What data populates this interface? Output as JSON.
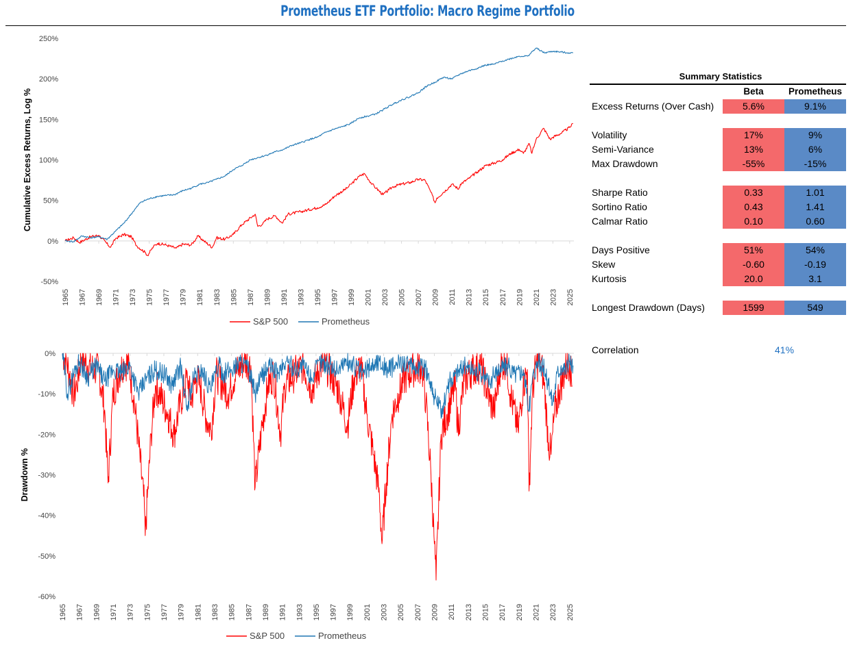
{
  "title": "Prometheus ETF Portfolio: Macro Regime Portfolio",
  "colors": {
    "sp500": "#ff0000",
    "prometheus": "#1f77b4",
    "beta_cell": "#f4696b",
    "prometheus_cell": "#5a8ac6",
    "title": "#1f70c1"
  },
  "chart_data": [
    {
      "type": "line",
      "ylabel": "Cumulative Excess Returns, Log %",
      "ylim": [
        -50,
        250
      ],
      "yticks": [
        "250%",
        "200%",
        "150%",
        "100%",
        "50%",
        "0%",
        "-50%"
      ],
      "xticks": [
        "1965",
        "1967",
        "1969",
        "1971",
        "1973",
        "1975",
        "1977",
        "1979",
        "1981",
        "1983",
        "1985",
        "1987",
        "1989",
        "1991",
        "1993",
        "1995",
        "1997",
        "1999",
        "2001",
        "2003",
        "2005",
        "2007",
        "2009",
        "2011",
        "2013",
        "2015",
        "2017",
        "2019",
        "2021",
        "2023",
        "2025"
      ],
      "xlim": [
        1965,
        2025.5
      ],
      "grid": false,
      "legend": "bottom",
      "series": [
        {
          "name": "S&P 500",
          "x": [
            1965.0,
            1966.0,
            1966.7,
            1968.0,
            1969.0,
            1970.4,
            1971.0,
            1972.0,
            1972.9,
            1973.5,
            1974.5,
            1974.8,
            1975.5,
            1976.0,
            1977.0,
            1978.2,
            1979.0,
            1980.0,
            1980.8,
            1981.5,
            1982.5,
            1983.0,
            1984.0,
            1985.0,
            1986.0,
            1987.6,
            1987.9,
            1988.5,
            1989.0,
            1990.0,
            1990.8,
            1991.5,
            1993.0,
            1995.0,
            1996.0,
            1997.0,
            1998.5,
            1999.0,
            2000.0,
            2000.6,
            2001.5,
            2002.0,
            2002.8,
            2003.5,
            2004.0,
            2005.0,
            2006.0,
            2007.0,
            2007.8,
            2008.5,
            2009.0,
            2009.2,
            2010.0,
            2011.0,
            2011.8,
            2012.0,
            2013.0,
            2014.0,
            2015.0,
            2016.0,
            2017.0,
            2018.0,
            2019.0,
            2019.5,
            2020.2,
            2020.5,
            2021.0,
            2021.9,
            2022.7,
            2023.0,
            2024.0,
            2025.0,
            2025.4
          ],
          "values": [
            0,
            4,
            -2,
            5,
            7,
            -8,
            3,
            8,
            5,
            -6,
            -14,
            -18,
            -7,
            -3,
            -5,
            -9,
            -4,
            -5,
            6,
            0,
            -8,
            4,
            2,
            8,
            20,
            33,
            18,
            21,
            27,
            31,
            22,
            33,
            36,
            41,
            45,
            55,
            65,
            70,
            80,
            83,
            70,
            65,
            57,
            63,
            67,
            70,
            72,
            76,
            75,
            60,
            47,
            53,
            60,
            70,
            64,
            70,
            77,
            85,
            93,
            96,
            100,
            108,
            113,
            108,
            120,
            108,
            125,
            139,
            125,
            128,
            133,
            140,
            145
          ]
        },
        {
          "name": "Prometheus",
          "x": [
            1965.0,
            1966.0,
            1967.0,
            1968.0,
            1969.0,
            1970.0,
            1971.0,
            1972.0,
            1973.0,
            1974.0,
            1975.0,
            1976.0,
            1977.0,
            1978.0,
            1979.0,
            1980.0,
            1981.0,
            1982.0,
            1983.0,
            1984.0,
            1985.0,
            1986.0,
            1987.0,
            1988.0,
            1989.0,
            1990.0,
            1991.0,
            1992.0,
            1993.0,
            1994.0,
            1995.0,
            1996.0,
            1997.0,
            1998.0,
            1999.0,
            2000.0,
            2001.0,
            2002.0,
            2003.0,
            2004.0,
            2005.0,
            2006.0,
            2007.0,
            2008.0,
            2009.0,
            2010.0,
            2011.0,
            2012.0,
            2013.0,
            2014.0,
            2015.0,
            2016.0,
            2017.0,
            2018.0,
            2019.0,
            2020.0,
            2021.0,
            2022.0,
            2023.0,
            2024.0,
            2025.0,
            2025.4
          ],
          "values": [
            0,
            -1,
            6,
            4,
            5,
            2,
            12,
            22,
            35,
            48,
            52,
            55,
            56,
            57,
            62,
            65,
            70,
            72,
            76,
            80,
            88,
            93,
            100,
            103,
            106,
            110,
            113,
            118,
            121,
            125,
            128,
            134,
            138,
            141,
            145,
            152,
            154,
            157,
            163,
            169,
            174,
            178,
            183,
            191,
            196,
            202,
            200,
            206,
            210,
            213,
            217,
            218,
            222,
            225,
            228,
            228,
            238,
            232,
            234,
            233,
            232,
            232
          ]
        }
      ]
    },
    {
      "type": "area",
      "ylabel": "Drawdown %",
      "ylim": [
        -60,
        0
      ],
      "yticks": [
        "0%",
        "-10%",
        "-20%",
        "-30%",
        "-40%",
        "-50%",
        "-60%"
      ],
      "xticks": [
        "1965",
        "1967",
        "1969",
        "1971",
        "1973",
        "1975",
        "1977",
        "1979",
        "1981",
        "1983",
        "1985",
        "1987",
        "1989",
        "1991",
        "1993",
        "1995",
        "1997",
        "1999",
        "2001",
        "2003",
        "2005",
        "2007",
        "2009",
        "2011",
        "2013",
        "2015",
        "2017",
        "2019",
        "2021",
        "2023",
        "2025"
      ],
      "xlim": [
        1965,
        2025.5
      ],
      "grid": false,
      "legend": "bottom",
      "series": [
        {
          "name": "S&P 500",
          "x": [
            1965.0,
            1965.5,
            1966.3,
            1966.7,
            1967.2,
            1968.0,
            1968.8,
            1969.3,
            1970.0,
            1970.4,
            1971.0,
            1971.7,
            1972.3,
            1972.9,
            1973.5,
            1974.0,
            1974.7,
            1974.8,
            1975.5,
            1976.0,
            1976.5,
            1977.5,
            1978.2,
            1979.0,
            1979.8,
            1980.2,
            1980.8,
            1981.3,
            1982.0,
            1982.6,
            1983.2,
            1984.0,
            1984.6,
            1985.5,
            1986.5,
            1987.3,
            1987.8,
            1988.5,
            1989.3,
            1990.0,
            1990.8,
            1991.3,
            1992.5,
            1993.5,
            1994.5,
            1995.5,
            1996.5,
            1997.8,
            1998.7,
            1999.5,
            2000.3,
            2001.0,
            2001.8,
            2002.5,
            2002.8,
            2003.3,
            2004.0,
            2004.8,
            2005.5,
            2006.5,
            2007.5,
            2008.0,
            2008.6,
            2009.0,
            2009.2,
            2009.8,
            2010.5,
            2011.5,
            2011.8,
            2012.5,
            2013.5,
            2014.5,
            2015.6,
            2016.1,
            2016.8,
            2017.5,
            2018.0,
            2018.9,
            2019.5,
            2020.0,
            2020.2,
            2020.6,
            2021.0,
            2021.6,
            2022.0,
            2022.5,
            2022.8,
            2023.2,
            2023.8,
            2024.5,
            2025.0,
            2025.3
          ],
          "values": [
            0,
            -2,
            -10,
            -8,
            -1,
            -3,
            -4,
            -4,
            -14,
            -32,
            -10,
            -5,
            -2,
            -3,
            -12,
            -22,
            -38,
            -45,
            -20,
            -8,
            -10,
            -15,
            -20,
            -12,
            -6,
            -12,
            -6,
            -8,
            -16,
            -19,
            -5,
            -8,
            -10,
            -5,
            -2,
            -3,
            -33,
            -20,
            -8,
            -5,
            -20,
            -8,
            -5,
            -3,
            -9,
            -3,
            -4,
            -10,
            -18,
            -6,
            -3,
            -15,
            -25,
            -35,
            -47,
            -32,
            -15,
            -10,
            -6,
            -4,
            -3,
            -12,
            -30,
            -47,
            -56,
            -20,
            -15,
            -8,
            -19,
            -7,
            -4,
            -3,
            -12,
            -14,
            -3,
            -2,
            -10,
            -19,
            -8,
            -4,
            -34,
            -10,
            -3,
            -2,
            -8,
            -22,
            -25,
            -15,
            -9,
            -4,
            -2,
            -8
          ]
        },
        {
          "name": "Prometheus",
          "x": [
            1965.0,
            1965.6,
            1966.5,
            1967.0,
            1968.0,
            1969.0,
            1970.0,
            1971.0,
            1972.0,
            1973.0,
            1974.0,
            1975.0,
            1976.0,
            1977.0,
            1978.0,
            1979.0,
            1979.7,
            1980.5,
            1981.5,
            1982.5,
            1983.5,
            1984.0,
            1985.0,
            1986.0,
            1987.0,
            1987.8,
            1988.5,
            1989.5,
            1990.5,
            1991.5,
            1992.5,
            1993.5,
            1994.5,
            1995.5,
            1996.5,
            1997.5,
            1998.5,
            1999.5,
            2000.5,
            2001.5,
            2002.5,
            2003.5,
            2004.5,
            2005.5,
            2006.5,
            2007.5,
            2008.3,
            2008.9,
            2009.5,
            2010.0,
            2010.5,
            2011.5,
            2012.5,
            2013.5,
            2014.5,
            2015.5,
            2016.5,
            2017.5,
            2018.5,
            2019.5,
            2020.2,
            2020.6,
            2021.2,
            2022.0,
            2022.5,
            2023.0,
            2023.5,
            2024.0,
            2024.5,
            2025.0,
            2025.4
          ],
          "values": [
            0,
            -10,
            -4,
            -2,
            -6,
            -3,
            -7,
            -4,
            -5,
            -3,
            -10,
            -6,
            -4,
            -5,
            -8,
            -3,
            -14,
            -6,
            -4,
            -9,
            -3,
            -5,
            -4,
            -2,
            -4,
            -10,
            -6,
            -3,
            -5,
            -2,
            -4,
            -3,
            -6,
            -2,
            -3,
            -4,
            -2,
            -3,
            -5,
            -3,
            -2,
            -4,
            -3,
            -2,
            -4,
            -3,
            -5,
            -10,
            -13,
            -15,
            -8,
            -5,
            -3,
            -4,
            -5,
            -7,
            -4,
            -3,
            -5,
            -4,
            -14,
            -6,
            -2,
            -4,
            -8,
            -12,
            -5,
            -3,
            -4,
            -2,
            -3
          ]
        }
      ]
    }
  ],
  "stats": {
    "title": "Summary Statistics",
    "col_beta": "Beta",
    "col_prometheus": "Prometheus",
    "rows": [
      {
        "label": "Excess Returns (Over Cash)",
        "beta": "5.6%",
        "prometheus": "9.1%"
      },
      {
        "label": "Volatility",
        "beta": "17%",
        "prometheus": "9%"
      },
      {
        "label": "Semi-Variance",
        "beta": "13%",
        "prometheus": "6%"
      },
      {
        "label": "Max Drawdown",
        "beta": "-55%",
        "prometheus": "-15%"
      },
      {
        "label": "Sharpe Ratio",
        "beta": "0.33",
        "prometheus": "1.01"
      },
      {
        "label": "Sortino Ratio",
        "beta": "0.43",
        "prometheus": "1.41"
      },
      {
        "label": "Calmar Ratio",
        "beta": "0.10",
        "prometheus": "0.60"
      },
      {
        "label": "Days Positive",
        "beta": "51%",
        "prometheus": "54%"
      },
      {
        "label": "Skew",
        "beta": "-0.60",
        "prometheus": "-0.19"
      },
      {
        "label": "Kurtosis",
        "beta": "20.0",
        "prometheus": "3.1"
      },
      {
        "label": "Longest Drawdown (Days)",
        "beta": "1599",
        "prometheus": "549"
      }
    ],
    "correlation_label": "Correlation",
    "correlation_value": "41%"
  }
}
